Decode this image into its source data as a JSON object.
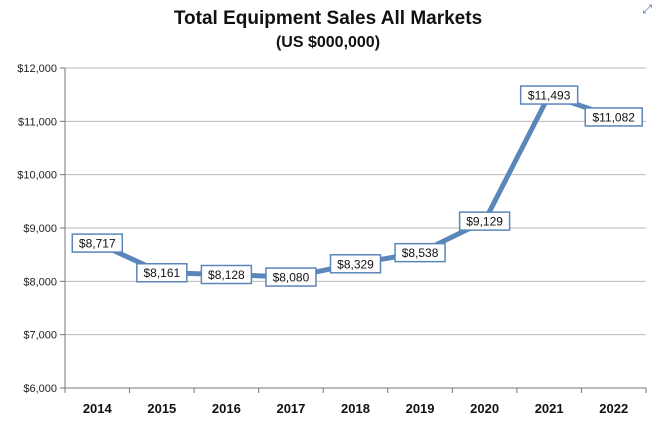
{
  "chart_data": {
    "type": "line",
    "title": "Total Equipment Sales All Markets",
    "subtitle": "(US $000,000)",
    "categories": [
      "2014",
      "2015",
      "2016",
      "2017",
      "2018",
      "2019",
      "2020",
      "2021",
      "2022"
    ],
    "series": [
      {
        "values": [
          8717,
          8161,
          8128,
          8080,
          8329,
          8538,
          9129,
          11493,
          11082
        ],
        "data_labels": [
          "$8,717",
          "$8,161",
          "$8,128",
          "$8,080",
          "$8,329",
          "$8,538",
          "$9,129",
          "$11,493",
          "$11,082"
        ],
        "color": "#5b86b9"
      }
    ],
    "ylim": [
      6000,
      12000
    ],
    "y_ticks": [
      6000,
      7000,
      8000,
      9000,
      10000,
      11000,
      12000
    ],
    "y_tick_labels": [
      "$6,000",
      "$7,000",
      "$8,000",
      "$9,000",
      "$10,000",
      "$11,000",
      "$12,000"
    ],
    "grid": true,
    "legend": "none",
    "xlabel": "",
    "ylabel": ""
  },
  "colors": {
    "line": "#5b86b9",
    "label_border": "#5b86b9",
    "gridline": "#b8b8b8",
    "axis": "#777777"
  },
  "icons": {
    "corner": "expand-icon"
  }
}
